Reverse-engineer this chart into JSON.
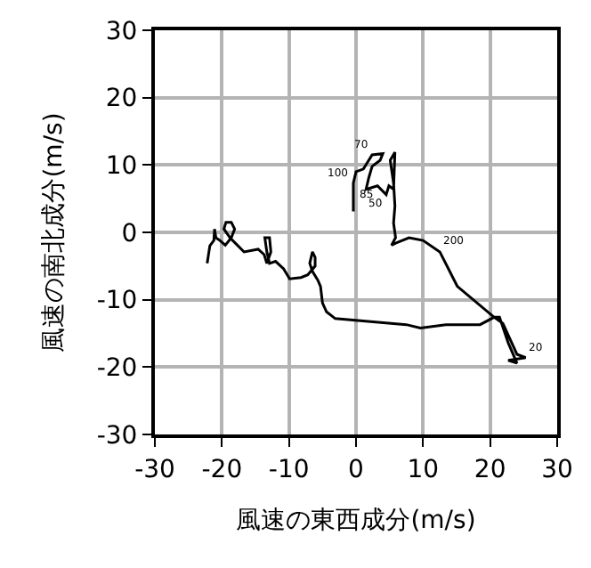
{
  "chart_data": {
    "type": "line",
    "xlabel": "風速の東西成分(m/s)",
    "ylabel": "風速の南北成分(m/s)",
    "xlim": [
      -30,
      30
    ],
    "ylim": [
      -30,
      30
    ],
    "xticks": [
      -30,
      -20,
      -10,
      0,
      10,
      20,
      30
    ],
    "yticks": [
      -30,
      -20,
      -10,
      0,
      10,
      20,
      30
    ],
    "grid": true,
    "marker": "none",
    "line_style": "solid",
    "series": [
      {
        "color": "#000000",
        "x": [
          -0.4,
          -0.4,
          0,
          1.1,
          2.4,
          4,
          3.6,
          2.4,
          1.9,
          1.5,
          3.2,
          4.5,
          4.9,
          5.6,
          5.8,
          5.1,
          5.6,
          5.8,
          5.6,
          5.9,
          5.3,
          5.9,
          7.9,
          10,
          12.5,
          15.1,
          20.6,
          21.4,
          22.7,
          24,
          22.7,
          25.3,
          24,
          21.9,
          20.6,
          18.5,
          13.4,
          9.6,
          7.5,
          -3.1,
          -4.4,
          -5,
          -5.3,
          -5.7,
          -6.5,
          -6.9,
          -6.5,
          -6.1,
          -6.1,
          -7.2,
          -8.2,
          -9.9,
          -10.8,
          -12,
          -12.9,
          -13.3,
          -13.6,
          -12.9,
          -12.7,
          -13.3,
          -13.7,
          -14.6,
          -16.7,
          -18,
          -18.8,
          -19.7,
          -19.4,
          -18.6,
          -18.1,
          -18.6,
          -19.5,
          -20.3,
          -20.9,
          -21.1,
          -21.2,
          -21.8,
          -22.2
        ],
        "values": [
          3.1,
          7.3,
          9,
          9.4,
          11.5,
          11.7,
          10.7,
          9.8,
          8.1,
          6.4,
          6.9,
          5.6,
          6.9,
          6.4,
          11.9,
          10.7,
          7.3,
          3.9,
          1.4,
          -0.8,
          -1.9,
          -1.6,
          -0.8,
          -1.2,
          -2.9,
          -8,
          -12.6,
          -12.6,
          -16.4,
          -19.4,
          -19,
          -18.6,
          -18.1,
          -13.5,
          -12.6,
          -13.7,
          -13.7,
          -14.2,
          -13.7,
          -12.8,
          -11.8,
          -10.5,
          -8,
          -7.1,
          -5.8,
          -4.6,
          -2.9,
          -3.7,
          -5,
          -6.3,
          -6.7,
          -6.9,
          -5.4,
          -4.3,
          -4.6,
          -2.9,
          -0.8,
          -0.8,
          -2.9,
          -4.6,
          -3.3,
          -2.5,
          -2.9,
          -1.6,
          -0.8,
          0.5,
          1.5,
          1.5,
          0.5,
          -0.8,
          -1.9,
          -1.2,
          -0.8,
          0.5,
          -1.2,
          -2,
          -4.6
        ]
      }
    ],
    "annotations": [
      {
        "text": "70",
        "x": 2.4,
        "y": 11.5
      },
      {
        "text": "100",
        "x": -0.4,
        "y": 7.3
      },
      {
        "text": "50",
        "x": 4.5,
        "y": 5.6
      },
      {
        "text": "85",
        "x": 3.2,
        "y": 6.9
      },
      {
        "text": "200",
        "x": 12.5,
        "y": -2.9
      },
      {
        "text": "20",
        "x": 25.3,
        "y": -18.6
      }
    ]
  }
}
